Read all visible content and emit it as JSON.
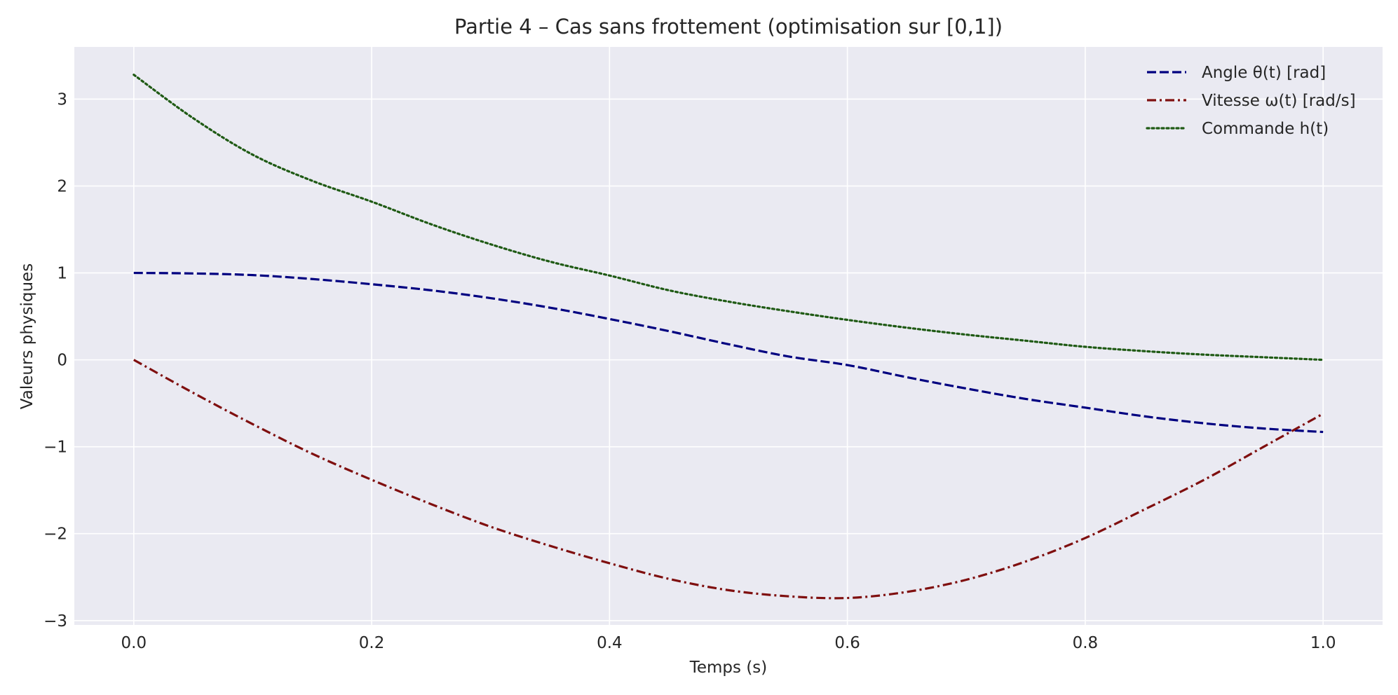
{
  "chart_data": {
    "type": "line",
    "title": "Partie 4 – Cas sans frottement (optimisation sur [0,1])",
    "xlabel": "Temps (s)",
    "ylabel": "Valeurs physiques",
    "xlim": [
      -0.05,
      1.05
    ],
    "ylim": [
      -3.05,
      3.6
    ],
    "xticks": [
      0.0,
      0.2,
      0.4,
      0.6,
      0.8,
      1.0
    ],
    "xtick_labels": [
      "0.0",
      "0.2",
      "0.4",
      "0.6",
      "0.8",
      "1.0"
    ],
    "yticks": [
      -3,
      -2,
      -1,
      0,
      1,
      2,
      3
    ],
    "ytick_labels": [
      "−3",
      "−2",
      "−1",
      "0",
      "1",
      "2",
      "3"
    ],
    "grid": true,
    "legend_position": "top-right",
    "background": "#eaeaf2",
    "x": [
      0.0,
      0.05,
      0.1,
      0.15,
      0.2,
      0.25,
      0.3,
      0.35,
      0.4,
      0.45,
      0.5,
      0.55,
      0.6,
      0.65,
      0.7,
      0.75,
      0.8,
      0.85,
      0.9,
      0.95,
      1.0
    ],
    "series": [
      {
        "name": "Angle θ(t) [rad]",
        "color": "#000080",
        "style": "dashed",
        "values": [
          1.0,
          0.994,
          0.975,
          0.93,
          0.87,
          0.8,
          0.71,
          0.6,
          0.47,
          0.33,
          0.18,
          0.04,
          -0.06,
          -0.2,
          -0.33,
          -0.45,
          -0.55,
          -0.65,
          -0.73,
          -0.79,
          -0.83
        ]
      },
      {
        "name": "Vitesse ω(t) [rad/s]",
        "color": "#7f0f0f",
        "style": "dashdot",
        "values": [
          0.0,
          -0.38,
          -0.74,
          -1.08,
          -1.38,
          -1.66,
          -1.92,
          -2.14,
          -2.34,
          -2.52,
          -2.65,
          -2.72,
          -2.74,
          -2.67,
          -2.53,
          -2.32,
          -2.05,
          -1.72,
          -1.38,
          -1.0,
          -0.62
        ]
      },
      {
        "name": "Commande h(t)",
        "color": "#1f5a14",
        "style": "dotted",
        "values": [
          3.28,
          2.78,
          2.36,
          2.06,
          1.82,
          1.56,
          1.33,
          1.13,
          0.97,
          0.8,
          0.67,
          0.56,
          0.46,
          0.37,
          0.29,
          0.22,
          0.15,
          0.1,
          0.06,
          0.03,
          0.0
        ]
      }
    ]
  }
}
